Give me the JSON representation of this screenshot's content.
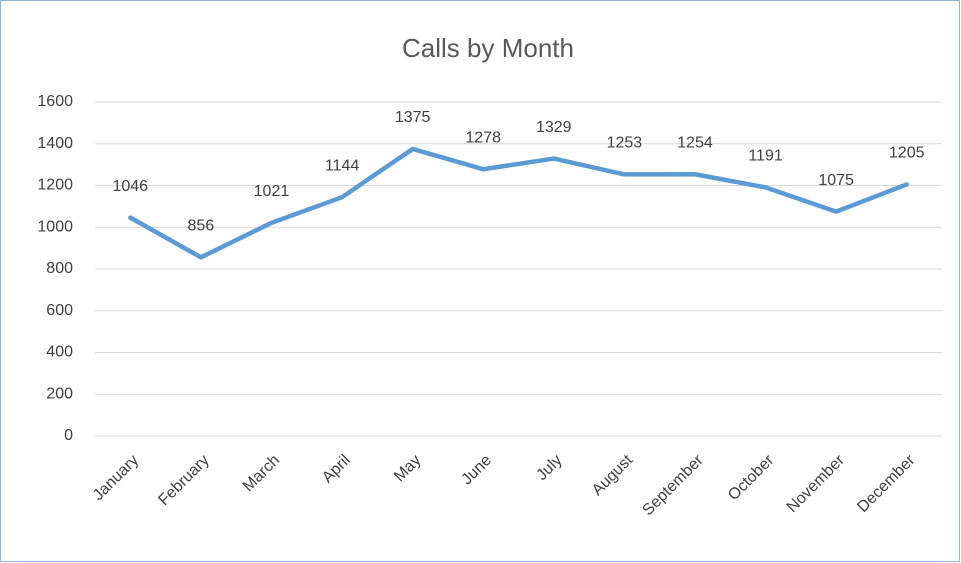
{
  "chart_data": {
    "type": "line",
    "title": "Calls by Month",
    "categories": [
      "January",
      "February",
      "March",
      "April",
      "May",
      "June",
      "July",
      "August",
      "September",
      "October",
      "November",
      "December"
    ],
    "series": [
      {
        "name": "Calls",
        "color": "#5b9bd5",
        "values": [
          1046,
          856,
          1021,
          1144,
          1375,
          1278,
          1329,
          1253,
          1254,
          1191,
          1075,
          1205
        ]
      }
    ],
    "ylim": [
      0,
      1600
    ],
    "yticks": [
      0,
      200,
      400,
      600,
      800,
      1000,
      1200,
      1400,
      1600
    ],
    "grid": true,
    "legend": false
  }
}
